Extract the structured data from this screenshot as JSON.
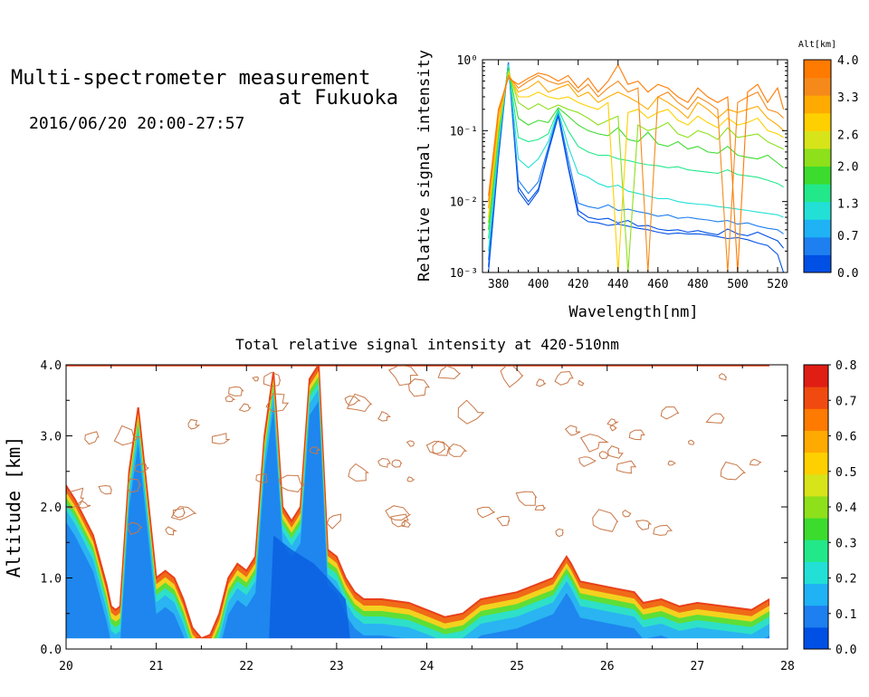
{
  "header": {
    "title_line1": "Multi-spectrometer measurement",
    "title_line2": "at Fukuoka",
    "subtitle": "2016/06/20 20:00-27:57"
  },
  "chart_data": [
    {
      "type": "line",
      "xlabel": "Wavelength[nm]",
      "ylabel": "Relative signal intensity",
      "xlim": [
        372,
        525
      ],
      "ylim": [
        0.001,
        1
      ],
      "yscale": "log",
      "xticks": [
        "380",
        "400",
        "420",
        "440",
        "460",
        "480",
        "500",
        "520"
      ],
      "yticks": [
        "10⁻³",
        "10⁻²",
        "10⁻¹",
        "10⁰"
      ],
      "colorbar": {
        "label": "Alt[km]",
        "ticks": [
          "0.0",
          "0.7",
          "1.3",
          "2.0",
          "2.6",
          "3.3",
          "4.0"
        ],
        "colors": [
          "#0050e6",
          "#1e7ff0",
          "#1fb2f5",
          "#22e0d6",
          "#22e88a",
          "#3cdc2e",
          "#8ee01a",
          "#d8e41a",
          "#ffd000",
          "#ffaa00",
          "#f58a1a",
          "#ff7a00"
        ]
      },
      "x": [
        375,
        380,
        385,
        390,
        395,
        400,
        405,
        410,
        415,
        420,
        425,
        430,
        435,
        440,
        445,
        450,
        455,
        460,
        465,
        470,
        475,
        480,
        485,
        490,
        495,
        500,
        505,
        510,
        515,
        520,
        523
      ],
      "series": [
        {
          "alt": 0.1,
          "values": [
            0.001,
            0.04,
            0.9,
            0.014,
            0.009,
            0.014,
            0.05,
            0.16,
            0.03,
            0.0065,
            0.0052,
            0.005,
            0.0046,
            0.0048,
            0.0045,
            0.0042,
            0.004,
            0.0037,
            0.0035,
            0.0036,
            0.0035,
            0.0035,
            0.0034,
            0.0032,
            0.003,
            0.0031,
            0.0029,
            0.0026,
            0.0024,
            0.0018,
            0.001
          ]
        },
        {
          "alt": 0.3,
          "values": [
            0.0012,
            0.045,
            0.92,
            0.016,
            0.01,
            0.015,
            0.052,
            0.17,
            0.032,
            0.0075,
            0.006,
            0.0056,
            0.0058,
            0.005,
            0.0054,
            0.0045,
            0.0046,
            0.0041,
            0.0039,
            0.004,
            0.0037,
            0.0039,
            0.0036,
            0.0034,
            0.0041,
            0.0035,
            0.0033,
            0.0037,
            0.0032,
            0.0028,
            0.0022
          ]
        },
        {
          "alt": 0.6,
          "values": [
            0.0015,
            0.05,
            0.9,
            0.02,
            0.013,
            0.019,
            0.058,
            0.18,
            0.04,
            0.0095,
            0.0085,
            0.008,
            0.009,
            0.0075,
            0.0078,
            0.0072,
            0.0068,
            0.0062,
            0.0065,
            0.0058,
            0.006,
            0.0057,
            0.0055,
            0.0052,
            0.0054,
            0.0048,
            0.005,
            0.0045,
            0.0042,
            0.004,
            0.0035
          ]
        },
        {
          "alt": 1.1,
          "values": [
            0.002,
            0.06,
            0.85,
            0.04,
            0.03,
            0.04,
            0.07,
            0.19,
            0.06,
            0.025,
            0.022,
            0.018,
            0.016,
            0.017,
            0.014,
            0.013,
            0.012,
            0.011,
            0.011,
            0.01,
            0.0095,
            0.0092,
            0.009,
            0.0085,
            0.0082,
            0.0078,
            0.0075,
            0.0071,
            0.0068,
            0.0065,
            0.006
          ]
        },
        {
          "alt": 1.5,
          "values": [
            0.003,
            0.08,
            0.8,
            0.08,
            0.07,
            0.075,
            0.09,
            0.2,
            0.1,
            0.06,
            0.05,
            0.045,
            0.045,
            0.04,
            0.038,
            0.035,
            0.033,
            0.032,
            0.03,
            0.031,
            0.028,
            0.027,
            0.026,
            0.025,
            0.028,
            0.024,
            0.023,
            0.022,
            0.02,
            0.018,
            0.016
          ]
        },
        {
          "alt": 1.9,
          "values": [
            0.004,
            0.09,
            0.75,
            0.15,
            0.12,
            0.14,
            0.13,
            0.21,
            0.16,
            0.12,
            0.1,
            0.09,
            0.085,
            0.11,
            0.075,
            0.07,
            0.095,
            0.065,
            0.06,
            0.07,
            0.055,
            0.06,
            0.05,
            0.048,
            0.06,
            0.045,
            0.042,
            0.04,
            0.045,
            0.035,
            0.03
          ]
        },
        {
          "alt": 2.3,
          "values": [
            0.005,
            0.1,
            0.7,
            0.25,
            0.2,
            0.24,
            0.2,
            0.23,
            0.2,
            0.18,
            0.15,
            0.12,
            0.14,
            0.16,
            0.001,
            0.12,
            0.1,
            0.11,
            0.13,
            0.09,
            0.08,
            0.1,
            0.09,
            0.075,
            0.11,
            0.08,
            0.085,
            0.09,
            0.07,
            0.06,
            0.055
          ]
        },
        {
          "alt": 2.7,
          "values": [
            0.006,
            0.12,
            0.65,
            0.3,
            0.3,
            0.35,
            0.3,
            0.28,
            0.3,
            0.25,
            0.22,
            0.2,
            0.25,
            0.001,
            0.18,
            0.2,
            0.15,
            0.18,
            0.2,
            0.14,
            0.12,
            0.16,
            0.13,
            0.11,
            0.15,
            0.12,
            0.13,
            0.15,
            0.1,
            0.09,
            0.08
          ]
        },
        {
          "alt": 3.0,
          "values": [
            0.008,
            0.15,
            0.6,
            0.35,
            0.4,
            0.5,
            0.35,
            0.4,
            0.45,
            0.3,
            0.35,
            0.25,
            0.3,
            0.35,
            0.3,
            0.25,
            0.2,
            0.3,
            0.25,
            0.2,
            0.15,
            0.25,
            0.2,
            0.15,
            0.2,
            0.18,
            0.2,
            0.22,
            0.15,
            0.12,
            0.1
          ]
        },
        {
          "alt": 3.4,
          "values": [
            0.01,
            0.18,
            0.6,
            0.4,
            0.5,
            0.6,
            0.5,
            0.45,
            0.5,
            0.35,
            0.45,
            0.3,
            0.4,
            0.5,
            0.35,
            0.4,
            0.001,
            0.3,
            0.35,
            0.25,
            0.2,
            0.3,
            0.25,
            0.2,
            0.001,
            0.25,
            0.3,
            0.35,
            0.2,
            0.18,
            0.15
          ]
        },
        {
          "alt": 3.8,
          "values": [
            0.012,
            0.2,
            0.55,
            0.45,
            0.55,
            0.65,
            0.6,
            0.5,
            0.6,
            0.4,
            0.55,
            0.35,
            0.5,
            0.85,
            0.45,
            0.5,
            0.35,
            0.45,
            0.4,
            0.3,
            0.25,
            0.4,
            0.3,
            0.25,
            0.3,
            0.001,
            0.35,
            0.45,
            0.25,
            0.4,
            0.2
          ]
        }
      ]
    },
    {
      "type": "heatmap",
      "title": "Total relative signal intensity at 420-510nm",
      "xlabel": "",
      "ylabel": "Altitude [km]",
      "xlim": [
        20,
        28
      ],
      "ylim": [
        0,
        4
      ],
      "xticks": [
        "20",
        "21",
        "22",
        "23",
        "24",
        "25",
        "26",
        "27",
        "28"
      ],
      "yticks": [
        "0.0",
        "1.0",
        "2.0",
        "3.0",
        "4.0"
      ],
      "colorbar": {
        "ticks": [
          "0.0",
          "0.1",
          "0.2",
          "0.3",
          "0.4",
          "0.5",
          "0.6",
          "0.7",
          "0.8"
        ],
        "colors": [
          "#0050e6",
          "#1e7ff0",
          "#1fb2f5",
          "#22e0d6",
          "#22e88a",
          "#3cdc2e",
          "#8ee01a",
          "#d8e41a",
          "#ffd000",
          "#ffaa00",
          "#ff7a00",
          "#f04a10",
          "#e01e14"
        ]
      },
      "data_bottom_km": 0.15,
      "data_end_hour": 27.8,
      "boundary_layer_top_km": {
        "t": [
          20.0,
          20.1,
          20.3,
          20.45,
          20.5,
          20.55,
          20.6,
          20.7,
          20.8,
          20.9,
          21.0,
          21.1,
          21.2,
          21.3,
          21.4,
          21.5,
          21.6,
          21.7,
          21.8,
          21.9,
          22.0,
          22.1,
          22.2,
          22.3,
          22.4,
          22.5,
          22.6,
          22.7,
          22.8,
          22.9,
          23.0,
          23.1,
          23.2,
          23.3,
          23.5,
          23.8,
          24.0,
          24.2,
          24.4,
          24.6,
          24.8,
          25.0,
          25.2,
          25.4,
          25.55,
          25.6,
          25.7,
          25.9,
          26.1,
          26.3,
          26.4,
          26.6,
          26.8,
          27.0,
          27.3,
          27.6,
          27.8
        ],
        "alt": [
          2.3,
          2.1,
          1.6,
          0.9,
          0.6,
          0.55,
          0.6,
          2.5,
          3.4,
          2.2,
          1.0,
          1.1,
          1.0,
          0.7,
          0.3,
          0.15,
          0.2,
          0.5,
          1.0,
          1.2,
          1.1,
          1.3,
          3.0,
          3.9,
          2.0,
          1.8,
          2.0,
          3.8,
          4.0,
          1.4,
          1.3,
          1.0,
          0.8,
          0.7,
          0.7,
          0.65,
          0.55,
          0.45,
          0.5,
          0.7,
          0.75,
          0.8,
          0.9,
          1.0,
          1.3,
          1.2,
          0.95,
          0.9,
          0.85,
          0.8,
          0.65,
          0.7,
          0.6,
          0.65,
          0.6,
          0.55,
          0.7
        ]
      },
      "aerosol_columns_km": [
        {
          "t": 20.1,
          "top": 2.3
        },
        {
          "t": 20.6,
          "top": 3.3
        },
        {
          "t": 20.9,
          "top": 3.5
        },
        {
          "t": 22.25,
          "top": 3.9
        },
        {
          "t": 22.8,
          "top": 4.0
        }
      ]
    }
  ]
}
